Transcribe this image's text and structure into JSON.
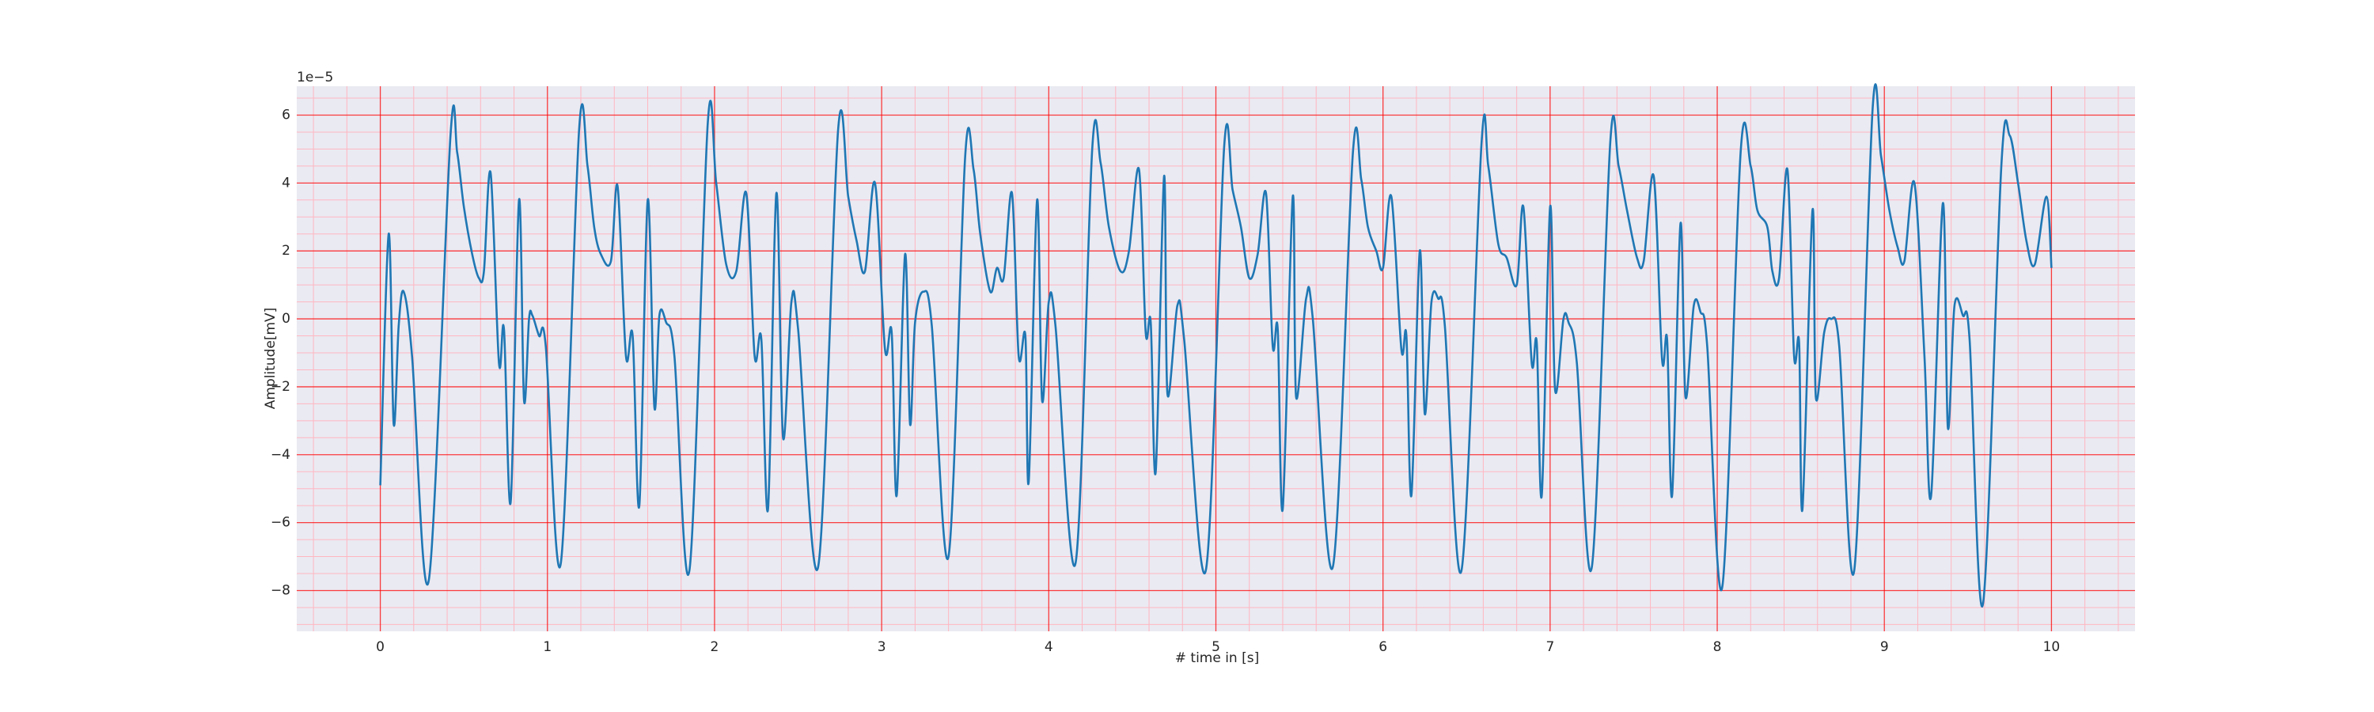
{
  "chart_data": {
    "type": "line",
    "xlabel": "# time in [s]",
    "ylabel": "Amplitude[mV]",
    "y_offset_label": "1e−5",
    "xlim": [
      -0.5,
      10.5
    ],
    "ylim": [
      -9.2,
      6.85
    ],
    "xticks": [
      0,
      1,
      2,
      3,
      4,
      5,
      6,
      7,
      8,
      9,
      10
    ],
    "yticks": [
      {
        "value": -8,
        "label": "−8"
      },
      {
        "value": -6,
        "label": "−6"
      },
      {
        "value": -4,
        "label": "−4"
      },
      {
        "value": -2,
        "label": "−2"
      },
      0,
      2,
      4,
      6
    ],
    "x_minor_ticks": [
      -0.4,
      -0.2,
      0.2,
      0.4,
      0.6,
      0.8,
      1.2,
      1.4,
      1.6,
      1.8,
      2.2,
      2.4,
      2.6,
      2.8,
      3.2,
      3.4,
      3.6,
      3.8,
      4.2,
      4.4,
      4.6,
      4.8,
      5.2,
      5.4,
      5.6,
      5.8,
      6.2,
      6.4,
      6.6,
      6.8,
      7.2,
      7.4,
      7.6,
      7.8,
      8.2,
      8.4,
      8.6,
      8.8,
      9.2,
      9.4,
      9.6,
      9.8,
      10.2,
      10.4
    ],
    "y_minor_ticks": [
      -9,
      -8.5,
      -7.5,
      -7,
      -6.5,
      -5.5,
      -5,
      -4.5,
      -3.5,
      -3,
      -2.5,
      -1.5,
      -1,
      -0.5,
      0.5,
      1,
      1.5,
      2.5,
      3,
      3.5,
      4.5,
      5,
      5.5,
      6.5
    ],
    "grid": true,
    "minor_grid": true,
    "grid_color": "#ff0000",
    "minor_grid_color": "#ffb6c1",
    "background": "#eaeaf2",
    "series": [
      {
        "color": "#1f77b4",
        "x": [
          0,
          0.05,
          0.08,
          0.11,
          0.14,
          0.19,
          0.29,
          0.42,
          0.46,
          0.5,
          0.55,
          0.59,
          0.62,
          0.66,
          0.71,
          0.74,
          0.78,
          0.83,
          0.86,
          0.89,
          0.91,
          0.95,
          0.99,
          1.08,
          1.19,
          1.24,
          1.28,
          1.32,
          1.38,
          1.42,
          1.47,
          1.51,
          1.55,
          1.6,
          1.64,
          1.67,
          1.71,
          1.76,
          1.85,
          1.96,
          2.01,
          2.07,
          2.13,
          2.19,
          2.24,
          2.28,
          2.32,
          2.37,
          2.41,
          2.46,
          2.5,
          2.62,
          2.74,
          2.8,
          2.85,
          2.9,
          2.96,
          3.02,
          3.06,
          3.09,
          3.14,
          3.17,
          3.2,
          3.25,
          3.3,
          3.4,
          3.5,
          3.55,
          3.59,
          3.65,
          3.69,
          3.73,
          3.78,
          3.82,
          3.86,
          3.88,
          3.93,
          3.96,
          4.0,
          4.04,
          4.16,
          4.26,
          4.31,
          4.36,
          4.43,
          4.48,
          4.54,
          4.58,
          4.61,
          4.64,
          4.69,
          4.71,
          4.77,
          4.81,
          4.94,
          5.05,
          5.1,
          5.15,
          5.2,
          5.25,
          5.3,
          5.34,
          5.37,
          5.4,
          5.46,
          5.48,
          5.54,
          5.58,
          5.7,
          5.82,
          5.87,
          5.91,
          5.96,
          6.0,
          6.05,
          6.11,
          6.14,
          6.17,
          6.22,
          6.25,
          6.29,
          6.33,
          6.37,
          6.47,
          6.59,
          6.63,
          6.69,
          6.74,
          6.8,
          6.84,
          6.89,
          6.92,
          6.95,
          7.0,
          7.03,
          7.08,
          7.11,
          7.16,
          7.25,
          7.36,
          7.41,
          7.46,
          7.52,
          7.56,
          7.62,
          7.67,
          7.7,
          7.73,
          7.78,
          7.81,
          7.86,
          7.9,
          7.94,
          8.03,
          8.14,
          8.2,
          8.24,
          8.3,
          8.33,
          8.37,
          8.42,
          8.46,
          8.49,
          8.51,
          8.57,
          8.59,
          8.64,
          8.68,
          8.73,
          8.82,
          8.93,
          8.98,
          9.03,
          9.08,
          9.12,
          9.18,
          9.24,
          9.28,
          9.35,
          9.38,
          9.42,
          9.47,
          9.51,
          9.59,
          9.7,
          9.75,
          9.8,
          9.85,
          9.9,
          9.97,
          10.0
        ],
        "values": [
          -4.9,
          2.5,
          -3.1,
          -0.2,
          0.8,
          -1.1,
          -7.7,
          5.4,
          4.9,
          3.3,
          1.9,
          1.2,
          1.4,
          4.3,
          -1.3,
          -0.3,
          -5.4,
          3.5,
          -2.4,
          0,
          0.1,
          -0.5,
          -0.8,
          -7.2,
          5.6,
          4.5,
          2.7,
          1.9,
          1.7,
          3.9,
          -1.1,
          -0.5,
          -5.5,
          3.5,
          -2.6,
          0.1,
          -0.1,
          -1.1,
          -7.4,
          5.8,
          4.0,
          1.6,
          1.4,
          3.7,
          -1.1,
          -0.6,
          -5.6,
          3.7,
          -3.5,
          0.5,
          -0.3,
          -7.3,
          5.6,
          3.6,
          2.3,
          1.4,
          4.0,
          -0.9,
          -0.4,
          -5.2,
          1.9,
          -3.1,
          -0.1,
          0.8,
          -0.2,
          -7.0,
          4.8,
          4.4,
          2.5,
          0.8,
          1.5,
          1.2,
          3.7,
          -1.1,
          -0.5,
          -4.8,
          3.5,
          -2.4,
          0.5,
          -0.2,
          -7.2,
          5.0,
          4.6,
          2.7,
          1.4,
          2.0,
          4.4,
          -0.4,
          -0.1,
          -4.5,
          4.2,
          -2.2,
          0.4,
          -0.6,
          -7.4,
          5.1,
          3.8,
          2.7,
          1.2,
          1.9,
          3.7,
          -0.8,
          -0.3,
          -5.6,
          3.6,
          -2.3,
          0.6,
          0,
          -7.3,
          4.9,
          4.1,
          2.7,
          2.0,
          1.5,
          3.6,
          -0.9,
          -0.5,
          -5.2,
          2.0,
          -2.8,
          0.5,
          0.6,
          -0.2,
          -7.4,
          5.2,
          4.5,
          2.2,
          1.8,
          1.0,
          3.3,
          -1.3,
          -0.7,
          -5.2,
          3.3,
          -2.1,
          0,
          -0.1,
          -1.3,
          -7.3,
          5.2,
          4.5,
          3.2,
          1.8,
          1.7,
          4.2,
          -1.2,
          -0.6,
          -5.2,
          2.8,
          -2.3,
          0.4,
          0.2,
          -0.8,
          -7.9,
          4.9,
          4.5,
          3.2,
          2.7,
          1.4,
          1.2,
          4.4,
          -1.1,
          -0.7,
          -5.6,
          3.2,
          -2.3,
          -0.4,
          0,
          -0.8,
          -7.4,
          6.2,
          4.8,
          3.2,
          2.1,
          1.7,
          4.0,
          -1.1,
          -5.2,
          3.4,
          -3.2,
          0.4,
          0.1,
          -0.6,
          -8.4,
          4.5,
          5.4,
          4.0,
          2.3,
          1.6,
          3.6,
          1.5
        ]
      }
    ]
  }
}
